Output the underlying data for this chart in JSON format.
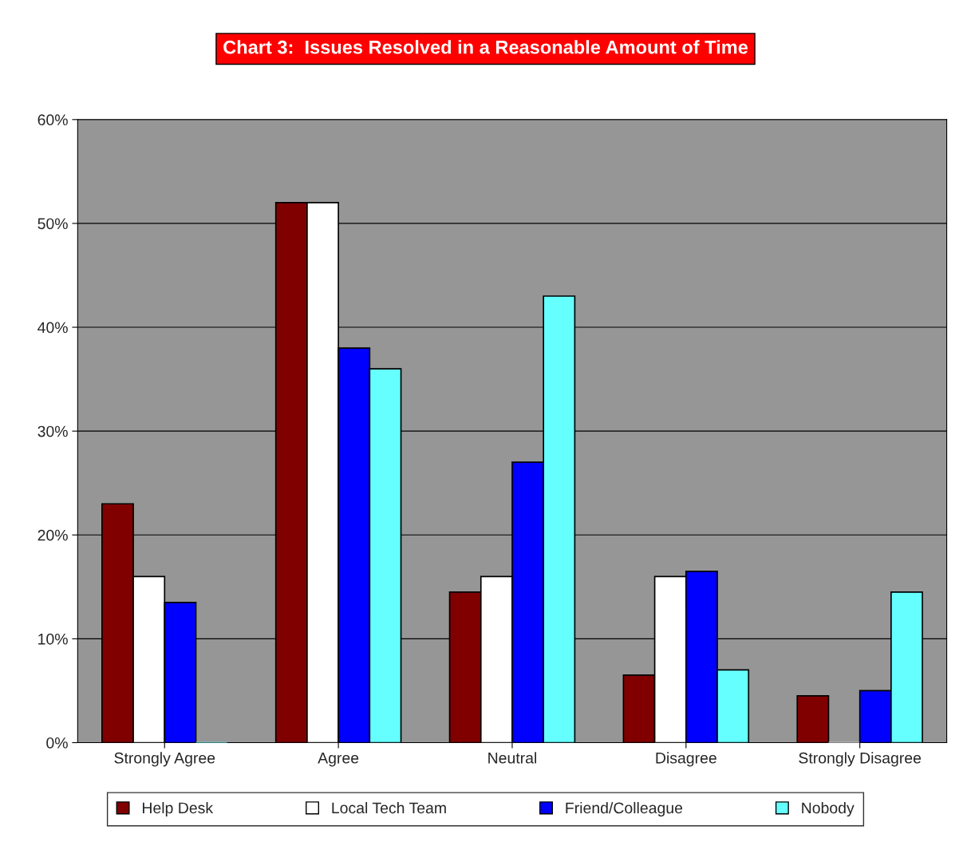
{
  "chart_data": {
    "type": "bar",
    "title": "Chart 3:  Issues Resolved in a Reasonable Amount of Time",
    "categories": [
      "Strongly Agree",
      "Agree",
      "Neutral",
      "Disagree",
      "Strongly Disagree"
    ],
    "series": [
      {
        "name": "Help Desk",
        "color": "#800000",
        "values": [
          23,
          52,
          14.5,
          6.5,
          4.5
        ]
      },
      {
        "name": "Local Tech Team",
        "color": "#ffffff",
        "values": [
          16,
          52,
          16,
          16,
          0
        ]
      },
      {
        "name": "Friend/Colleague",
        "color": "#0000ff",
        "values": [
          13.5,
          38,
          27,
          16.5,
          5
        ]
      },
      {
        "name": "Nobody",
        "color": "#66ffff",
        "values": [
          0,
          36,
          43,
          7,
          14.5
        ]
      }
    ],
    "ylim": [
      0,
      60
    ],
    "yticks": [
      {
        "value": 0,
        "label": "0%"
      },
      {
        "value": 10,
        "label": "10%"
      },
      {
        "value": 20,
        "label": "20%"
      },
      {
        "value": 30,
        "label": "30%"
      },
      {
        "value": 40,
        "label": "40%"
      },
      {
        "value": 50,
        "label": "50%"
      },
      {
        "value": 60,
        "label": "60%"
      }
    ],
    "grid": "y",
    "legend": "bottom"
  }
}
